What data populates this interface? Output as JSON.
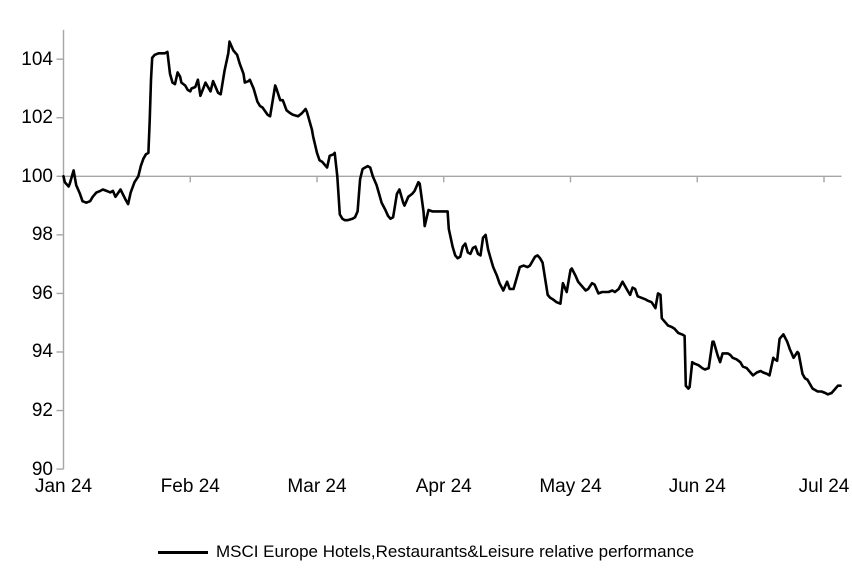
{
  "chart_data": {
    "type": "line",
    "title": "",
    "legend_position": "bottom",
    "x_axis": {
      "unit": "months since Jan 2024",
      "tick_labels": [
        "Jan 24",
        "Feb 24",
        "Mar 24",
        "Apr 24",
        "May 24",
        "Jun 24",
        "Jul 24"
      ],
      "tick_positions": [
        0,
        1,
        2,
        3,
        4,
        5,
        6
      ],
      "range": [
        0,
        6.16
      ],
      "axis_line_at_value": 100,
      "grid": false
    },
    "y_axis": {
      "tick_labels": [
        "90",
        "92",
        "94",
        "96",
        "98",
        "100",
        "102",
        "104"
      ],
      "tick_values": [
        90,
        92,
        94,
        96,
        98,
        100,
        102,
        104
      ],
      "range": [
        90,
        105
      ],
      "reference_line_value": 100,
      "grid": false
    },
    "series": [
      {
        "name": "MSCI Europe Hotels,Restaurants&Leisure relative performance",
        "color": "#000000",
        "points": [
          [
            0.0,
            100.0
          ],
          [
            0.01,
            99.8
          ],
          [
            0.04,
            99.65
          ],
          [
            0.05,
            99.75
          ],
          [
            0.08,
            100.2
          ],
          [
            0.1,
            99.7
          ],
          [
            0.13,
            99.4
          ],
          [
            0.15,
            99.15
          ],
          [
            0.18,
            99.1
          ],
          [
            0.21,
            99.15
          ],
          [
            0.23,
            99.3
          ],
          [
            0.26,
            99.45
          ],
          [
            0.29,
            99.5
          ],
          [
            0.31,
            99.55
          ],
          [
            0.34,
            99.5
          ],
          [
            0.37,
            99.45
          ],
          [
            0.39,
            99.5
          ],
          [
            0.41,
            99.3
          ],
          [
            0.45,
            99.55
          ],
          [
            0.49,
            99.2
          ],
          [
            0.51,
            99.05
          ],
          [
            0.53,
            99.45
          ],
          [
            0.56,
            99.8
          ],
          [
            0.59,
            100.0
          ],
          [
            0.61,
            100.35
          ],
          [
            0.63,
            100.6
          ],
          [
            0.65,
            100.75
          ],
          [
            0.67,
            100.8
          ],
          [
            0.68,
            101.9
          ],
          [
            0.69,
            103.3
          ],
          [
            0.7,
            104.05
          ],
          [
            0.72,
            104.15
          ],
          [
            0.75,
            104.2
          ],
          [
            0.78,
            104.2
          ],
          [
            0.8,
            104.2
          ],
          [
            0.82,
            104.25
          ],
          [
            0.84,
            103.5
          ],
          [
            0.86,
            103.2
          ],
          [
            0.88,
            103.15
          ],
          [
            0.9,
            103.55
          ],
          [
            0.92,
            103.4
          ],
          [
            0.93,
            103.2
          ],
          [
            0.96,
            103.1
          ],
          [
            0.98,
            102.95
          ],
          [
            1.0,
            102.9
          ],
          [
            1.01,
            103.0
          ],
          [
            1.04,
            103.05
          ],
          [
            1.06,
            103.3
          ],
          [
            1.08,
            102.75
          ],
          [
            1.12,
            103.2
          ],
          [
            1.16,
            102.9
          ],
          [
            1.18,
            103.25
          ],
          [
            1.22,
            102.85
          ],
          [
            1.24,
            102.8
          ],
          [
            1.27,
            103.6
          ],
          [
            1.3,
            104.2
          ],
          [
            1.31,
            104.6
          ],
          [
            1.34,
            104.3
          ],
          [
            1.37,
            104.15
          ],
          [
            1.39,
            103.85
          ],
          [
            1.42,
            103.5
          ],
          [
            1.43,
            103.2
          ],
          [
            1.46,
            103.25
          ],
          [
            1.47,
            103.3
          ],
          [
            1.5,
            103.0
          ],
          [
            1.53,
            102.55
          ],
          [
            1.55,
            102.4
          ],
          [
            1.57,
            102.35
          ],
          [
            1.61,
            102.1
          ],
          [
            1.63,
            102.05
          ],
          [
            1.67,
            103.1
          ],
          [
            1.68,
            103.0
          ],
          [
            1.71,
            102.6
          ],
          [
            1.73,
            102.6
          ],
          [
            1.76,
            102.25
          ],
          [
            1.79,
            102.15
          ],
          [
            1.81,
            102.1
          ],
          [
            1.85,
            102.05
          ],
          [
            1.88,
            102.15
          ],
          [
            1.91,
            102.3
          ],
          [
            1.92,
            102.2
          ],
          [
            1.94,
            101.9
          ],
          [
            1.96,
            101.6
          ],
          [
            1.97,
            101.35
          ],
          [
            2.0,
            100.8
          ],
          [
            2.02,
            100.55
          ],
          [
            2.04,
            100.5
          ],
          [
            2.06,
            100.4
          ],
          [
            2.08,
            100.3
          ],
          [
            2.1,
            100.7
          ],
          [
            2.13,
            100.75
          ],
          [
            2.14,
            100.8
          ],
          [
            2.16,
            100.0
          ],
          [
            2.18,
            98.7
          ],
          [
            2.2,
            98.55
          ],
          [
            2.22,
            98.5
          ],
          [
            2.24,
            98.5
          ],
          [
            2.28,
            98.55
          ],
          [
            2.3,
            98.6
          ],
          [
            2.32,
            98.8
          ],
          [
            2.34,
            99.9
          ],
          [
            2.36,
            100.25
          ],
          [
            2.38,
            100.3
          ],
          [
            2.4,
            100.35
          ],
          [
            2.42,
            100.3
          ],
          [
            2.44,
            100.0
          ],
          [
            2.47,
            99.7
          ],
          [
            2.49,
            99.4
          ],
          [
            2.51,
            99.1
          ],
          [
            2.54,
            98.85
          ],
          [
            2.56,
            98.65
          ],
          [
            2.58,
            98.55
          ],
          [
            2.6,
            98.6
          ],
          [
            2.63,
            99.4
          ],
          [
            2.65,
            99.55
          ],
          [
            2.68,
            99.1
          ],
          [
            2.69,
            99.0
          ],
          [
            2.72,
            99.3
          ],
          [
            2.75,
            99.4
          ],
          [
            2.77,
            99.5
          ],
          [
            2.8,
            99.8
          ],
          [
            2.81,
            99.75
          ],
          [
            2.84,
            98.8
          ],
          [
            2.85,
            98.3
          ],
          [
            2.88,
            98.85
          ],
          [
            2.91,
            98.8
          ],
          [
            2.94,
            98.8
          ],
          [
            2.97,
            98.8
          ],
          [
            3.03,
            98.8
          ],
          [
            3.04,
            98.2
          ],
          [
            3.07,
            97.6
          ],
          [
            3.09,
            97.3
          ],
          [
            3.11,
            97.2
          ],
          [
            3.13,
            97.25
          ],
          [
            3.15,
            97.6
          ],
          [
            3.17,
            97.7
          ],
          [
            3.19,
            97.4
          ],
          [
            3.21,
            97.35
          ],
          [
            3.23,
            97.55
          ],
          [
            3.25,
            97.6
          ],
          [
            3.27,
            97.35
          ],
          [
            3.29,
            97.3
          ],
          [
            3.31,
            97.9
          ],
          [
            3.33,
            98.0
          ],
          [
            3.35,
            97.5
          ],
          [
            3.37,
            97.2
          ],
          [
            3.39,
            96.9
          ],
          [
            3.42,
            96.6
          ],
          [
            3.44,
            96.35
          ],
          [
            3.47,
            96.1
          ],
          [
            3.5,
            96.4
          ],
          [
            3.52,
            96.15
          ],
          [
            3.55,
            96.15
          ],
          [
            3.58,
            96.6
          ],
          [
            3.6,
            96.9
          ],
          [
            3.63,
            96.95
          ],
          [
            3.66,
            96.9
          ],
          [
            3.68,
            96.95
          ],
          [
            3.72,
            97.25
          ],
          [
            3.74,
            97.3
          ],
          [
            3.76,
            97.2
          ],
          [
            3.78,
            97.05
          ],
          [
            3.82,
            95.95
          ],
          [
            3.84,
            95.85
          ],
          [
            3.86,
            95.8
          ],
          [
            3.89,
            95.7
          ],
          [
            3.92,
            95.65
          ],
          [
            3.94,
            96.35
          ],
          [
            3.97,
            96.05
          ],
          [
            4.0,
            96.8
          ],
          [
            4.01,
            96.85
          ],
          [
            4.04,
            96.6
          ],
          [
            4.06,
            96.4
          ],
          [
            4.09,
            96.25
          ],
          [
            4.12,
            96.1
          ],
          [
            4.14,
            96.15
          ],
          [
            4.17,
            96.35
          ],
          [
            4.19,
            96.3
          ],
          [
            4.22,
            96.0
          ],
          [
            4.25,
            96.05
          ],
          [
            4.27,
            96.05
          ],
          [
            4.3,
            96.05
          ],
          [
            4.33,
            96.1
          ],
          [
            4.35,
            96.05
          ],
          [
            4.38,
            96.15
          ],
          [
            4.41,
            96.4
          ],
          [
            4.45,
            96.1
          ],
          [
            4.47,
            95.95
          ],
          [
            4.49,
            96.2
          ],
          [
            4.51,
            96.15
          ],
          [
            4.53,
            95.9
          ],
          [
            4.56,
            95.85
          ],
          [
            4.59,
            95.8
          ],
          [
            4.61,
            95.75
          ],
          [
            4.64,
            95.7
          ],
          [
            4.67,
            95.5
          ],
          [
            4.69,
            96.0
          ],
          [
            4.71,
            95.95
          ],
          [
            4.72,
            95.15
          ],
          [
            4.75,
            95.0
          ],
          [
            4.77,
            94.9
          ],
          [
            4.8,
            94.85
          ],
          [
            4.82,
            94.8
          ],
          [
            4.85,
            94.65
          ],
          [
            4.88,
            94.6
          ],
          [
            4.9,
            94.55
          ],
          [
            4.91,
            92.85
          ],
          [
            4.93,
            92.75
          ],
          [
            4.94,
            92.8
          ],
          [
            4.96,
            93.65
          ],
          [
            4.98,
            93.6
          ],
          [
            5.01,
            93.55
          ],
          [
            5.04,
            93.45
          ],
          [
            5.06,
            93.4
          ],
          [
            5.09,
            93.45
          ],
          [
            5.12,
            94.35
          ],
          [
            5.13,
            94.35
          ],
          [
            5.16,
            93.9
          ],
          [
            5.18,
            93.65
          ],
          [
            5.2,
            93.95
          ],
          [
            5.24,
            93.95
          ],
          [
            5.26,
            93.9
          ],
          [
            5.28,
            93.8
          ],
          [
            5.31,
            93.75
          ],
          [
            5.34,
            93.65
          ],
          [
            5.36,
            93.5
          ],
          [
            5.39,
            93.45
          ],
          [
            5.42,
            93.3
          ],
          [
            5.44,
            93.2
          ],
          [
            5.47,
            93.3
          ],
          [
            5.5,
            93.35
          ],
          [
            5.52,
            93.3
          ],
          [
            5.55,
            93.25
          ],
          [
            5.57,
            93.2
          ],
          [
            5.6,
            93.8
          ],
          [
            5.61,
            93.75
          ],
          [
            5.63,
            93.7
          ],
          [
            5.65,
            94.45
          ],
          [
            5.68,
            94.6
          ],
          [
            5.71,
            94.35
          ],
          [
            5.73,
            94.1
          ],
          [
            5.76,
            93.8
          ],
          [
            5.79,
            94.0
          ],
          [
            5.8,
            93.95
          ],
          [
            5.83,
            93.25
          ],
          [
            5.85,
            93.1
          ],
          [
            5.87,
            93.05
          ],
          [
            5.91,
            92.75
          ],
          [
            5.93,
            92.7
          ],
          [
            5.95,
            92.65
          ],
          [
            5.98,
            92.65
          ],
          [
            6.01,
            92.6
          ],
          [
            6.03,
            92.55
          ],
          [
            6.06,
            92.6
          ],
          [
            6.09,
            92.75
          ],
          [
            6.11,
            92.85
          ],
          [
            6.13,
            92.85
          ]
        ]
      }
    ]
  },
  "legend": {
    "label": "MSCI Europe Hotels,Restaurants&Leisure relative performance"
  },
  "colors": {
    "background": "#ffffff",
    "axis": "#a6a6a6",
    "series_line": "#000000",
    "text": "#000000"
  }
}
